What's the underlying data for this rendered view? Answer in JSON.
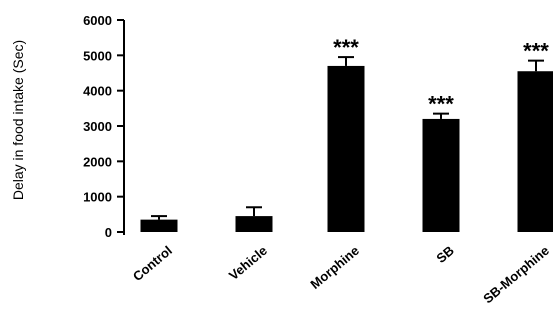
{
  "chart_data": {
    "type": "bar",
    "title": "",
    "xlabel": "",
    "ylabel": "Delay in food intake (Sec)",
    "ylim": [
      0,
      6000
    ],
    "yticks": [
      0,
      1000,
      2000,
      3000,
      4000,
      5000,
      6000
    ],
    "grid": false,
    "categories": [
      "Control",
      "Vehicle",
      "Morphine",
      "SB",
      "SB-Morphine"
    ],
    "values": [
      350,
      450,
      4700,
      3200,
      4550
    ],
    "errors": [
      100,
      250,
      250,
      150,
      300
    ],
    "significance": [
      "",
      "",
      "***",
      "***",
      "***"
    ],
    "bar_color": "#000000"
  }
}
